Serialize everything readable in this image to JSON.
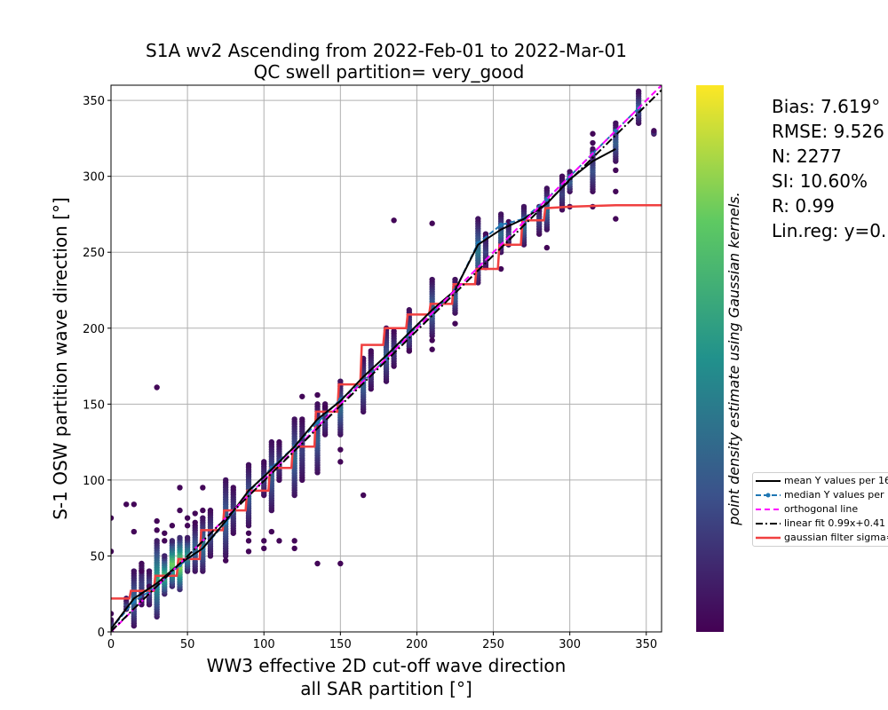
{
  "chart_data": {
    "type": "scatter",
    "title": [
      "S1A wv2 Ascending from 2022-Feb-01 to 2022-Mar-01",
      "QC swell partition= very_good"
    ],
    "xlabel": [
      "WW3 effective 2D cut-off wave direction",
      "all SAR partition [°]"
    ],
    "ylabel": "S-1 OSW partition wave direction [°]",
    "xlim": [
      0,
      360
    ],
    "ylim": [
      0,
      360
    ],
    "x_ticks": [
      0,
      50,
      100,
      150,
      200,
      250,
      300,
      350
    ],
    "y_ticks": [
      0,
      50,
      100,
      150,
      200,
      250,
      300,
      350
    ],
    "grid": true,
    "colorbar": {
      "label": "point density estimate using Gaussian kernels.",
      "colormap": "viridis",
      "colors": [
        "#440154",
        "#3b528b",
        "#21918c",
        "#5ec962",
        "#fde725"
      ]
    },
    "stats": [
      {
        "name": "Bias",
        "value": "7.619°"
      },
      {
        "name": "RMSE",
        "value": "9.526"
      },
      {
        "name": "N",
        "value": "2277"
      },
      {
        "name": "SI",
        "value": "10.60%"
      },
      {
        "name": "R",
        "value": "0.99"
      },
      {
        "name": "Lin.reg",
        "value": "y=0."
      }
    ],
    "stats_text": [
      "Bias: 7.619°",
      "RMSE: 9.526",
      "N: 2277",
      "SI: 10.60%",
      "R: 0.99",
      "Lin.reg: y=0."
    ],
    "legend": {
      "placement": "right",
      "entries": [
        {
          "label": "mean Y values per 16",
          "color": "#000000",
          "style": "solid"
        },
        {
          "label": "median Y values per",
          "color": "#1f77b4",
          "style": "dashed-dot-marker"
        },
        {
          "label": "orthogonal line",
          "color": "#ff00ff",
          "style": "dashed"
        },
        {
          "label": "linear fit 0.99x+0.41",
          "color": "#000000",
          "style": "dashdot"
        },
        {
          "label": "gaussian filter sigma=",
          "color": "#f04040",
          "style": "solid"
        }
      ]
    },
    "scatter_columns": [
      {
        "x": 0,
        "y_min": 0,
        "y_max": 8,
        "density": 0.3,
        "outliers": [
          12,
          53,
          75
        ]
      },
      {
        "x": 10,
        "y_min": 15,
        "y_max": 22,
        "density": 0.2,
        "outliers": [
          84
        ]
      },
      {
        "x": 15,
        "y_min": 4,
        "y_max": 40,
        "density": 0.35,
        "outliers": [
          66,
          84
        ]
      },
      {
        "x": 20,
        "y_min": 18,
        "y_max": 45,
        "density": 0.2,
        "outliers": [
          40
        ]
      },
      {
        "x": 25,
        "y_min": 18,
        "y_max": 40,
        "density": 0.3,
        "outliers": [
          30
        ]
      },
      {
        "x": 30,
        "y_min": 10,
        "y_max": 60,
        "density": 0.6,
        "outliers": [
          67,
          73,
          161
        ]
      },
      {
        "x": 35,
        "y_min": 25,
        "y_max": 50,
        "density": 0.7,
        "outliers": [
          60,
          65
        ]
      },
      {
        "x": 40,
        "y_min": 30,
        "y_max": 60,
        "density": 0.8,
        "outliers": [
          70
        ]
      },
      {
        "x": 45,
        "y_min": 28,
        "y_max": 62,
        "density": 0.9,
        "outliers": [
          80,
          95
        ]
      },
      {
        "x": 50,
        "y_min": 40,
        "y_max": 62,
        "density": 0.55,
        "outliers": [
          70,
          75
        ]
      },
      {
        "x": 55,
        "y_min": 40,
        "y_max": 70,
        "density": 0.35,
        "outliers": [
          72,
          78
        ]
      },
      {
        "x": 60,
        "y_min": 40,
        "y_max": 75,
        "density": 0.4,
        "outliers": [
          80,
          95
        ]
      },
      {
        "x": 65,
        "y_min": 50,
        "y_max": 80,
        "density": 0.25,
        "outliers": []
      },
      {
        "x": 75,
        "y_min": 50,
        "y_max": 100,
        "density": 0.35,
        "outliers": [
          47
        ]
      },
      {
        "x": 80,
        "y_min": 65,
        "y_max": 95,
        "density": 0.2,
        "outliers": []
      },
      {
        "x": 90,
        "y_min": 70,
        "y_max": 110,
        "density": 0.3,
        "outliers": [
          60,
          65,
          53
        ]
      },
      {
        "x": 100,
        "y_min": 90,
        "y_max": 112,
        "density": 0.2,
        "outliers": [
          60,
          55
        ]
      },
      {
        "x": 105,
        "y_min": 80,
        "y_max": 125,
        "density": 0.3,
        "outliers": [
          66
        ]
      },
      {
        "x": 110,
        "y_min": 100,
        "y_max": 125,
        "density": 0.2,
        "outliers": [
          60
        ]
      },
      {
        "x": 120,
        "y_min": 90,
        "y_max": 140,
        "density": 0.35,
        "outliers": [
          60,
          55
        ]
      },
      {
        "x": 125,
        "y_min": 100,
        "y_max": 140,
        "density": 0.2,
        "outliers": [
          155
        ]
      },
      {
        "x": 135,
        "y_min": 105,
        "y_max": 150,
        "density": 0.3,
        "outliers": [
          45,
          156
        ]
      },
      {
        "x": 140,
        "y_min": 130,
        "y_max": 150,
        "density": 0.2,
        "outliers": [
          148
        ]
      },
      {
        "x": 150,
        "y_min": 130,
        "y_max": 165,
        "density": 0.35,
        "outliers": [
          45,
          120,
          112
        ]
      },
      {
        "x": 165,
        "y_min": 145,
        "y_max": 180,
        "density": 0.3,
        "outliers": [
          90
        ]
      },
      {
        "x": 170,
        "y_min": 160,
        "y_max": 185,
        "density": 0.2,
        "outliers": []
      },
      {
        "x": 180,
        "y_min": 165,
        "y_max": 200,
        "density": 0.3,
        "outliers": []
      },
      {
        "x": 185,
        "y_min": 175,
        "y_max": 198,
        "density": 0.2,
        "outliers": [
          271
        ]
      },
      {
        "x": 195,
        "y_min": 185,
        "y_max": 212,
        "density": 0.3,
        "outliers": [
          185
        ]
      },
      {
        "x": 210,
        "y_min": 195,
        "y_max": 232,
        "density": 0.35,
        "outliers": [
          269,
          186,
          192
        ]
      },
      {
        "x": 225,
        "y_min": 210,
        "y_max": 232,
        "density": 0.3,
        "outliers": [
          203
        ]
      },
      {
        "x": 240,
        "y_min": 230,
        "y_max": 272,
        "density": 0.4,
        "outliers": []
      },
      {
        "x": 245,
        "y_min": 240,
        "y_max": 262,
        "density": 0.2,
        "outliers": []
      },
      {
        "x": 255,
        "y_min": 250,
        "y_max": 275,
        "density": 0.35,
        "outliers": [
          239
        ]
      },
      {
        "x": 260,
        "y_min": 255,
        "y_max": 270,
        "density": 0.2,
        "outliers": []
      },
      {
        "x": 270,
        "y_min": 255,
        "y_max": 280,
        "density": 0.35,
        "outliers": []
      },
      {
        "x": 280,
        "y_min": 262,
        "y_max": 280,
        "density": 0.2,
        "outliers": []
      },
      {
        "x": 285,
        "y_min": 265,
        "y_max": 292,
        "density": 0.35,
        "outliers": [
          253
        ]
      },
      {
        "x": 295,
        "y_min": 278,
        "y_max": 300,
        "density": 0.2,
        "outliers": []
      },
      {
        "x": 300,
        "y_min": 290,
        "y_max": 303,
        "density": 0.3,
        "outliers": [
          280
        ]
      },
      {
        "x": 315,
        "y_min": 290,
        "y_max": 318,
        "density": 0.25,
        "outliers": [
          328,
          322,
          280
        ]
      },
      {
        "x": 330,
        "y_min": 310,
        "y_max": 335,
        "density": 0.3,
        "outliers": [
          290,
          272,
          304
        ]
      },
      {
        "x": 345,
        "y_min": 335,
        "y_max": 356,
        "density": 0.3,
        "outliers": []
      },
      {
        "x": 355,
        "y_min": 328,
        "y_max": 330,
        "density": 0.2,
        "outliers": []
      }
    ],
    "series": [
      {
        "label_ref": 0,
        "x": [
          0,
          15,
          30,
          45,
          60,
          75,
          90,
          105,
          120,
          135,
          150,
          165,
          180,
          195,
          210,
          225,
          240,
          255,
          270,
          285,
          300,
          315,
          330
        ],
        "y": [
          2,
          22,
          32,
          45,
          55,
          73,
          93,
          107,
          122,
          140,
          152,
          168,
          182,
          197,
          212,
          225,
          255,
          265,
          272,
          282,
          298,
          310,
          318
        ]
      },
      {
        "label_ref": 1,
        "x": [
          0,
          15,
          30,
          45,
          60,
          75,
          90,
          105,
          120,
          135,
          150,
          165,
          180,
          195,
          210,
          225,
          240,
          255,
          270,
          285,
          300,
          315,
          330,
          345
        ],
        "y": [
          2,
          20,
          30,
          44,
          55,
          72,
          92,
          108,
          122,
          138,
          153,
          165,
          180,
          196,
          210,
          225,
          256,
          268,
          272,
          285,
          300,
          315,
          330,
          345
        ]
      },
      {
        "label_ref": 2,
        "x": [
          0,
          360
        ],
        "y": [
          0,
          360
        ]
      },
      {
        "label_ref": 3,
        "x": [
          0,
          360
        ],
        "y": [
          0.41,
          356.8
        ]
      },
      {
        "label_ref": 4,
        "x": [
          0,
          12,
          13,
          28,
          29,
          43,
          44,
          58,
          59,
          73,
          74,
          88,
          89,
          103,
          104,
          118,
          119,
          133,
          134,
          148,
          149,
          163,
          164,
          178,
          179,
          193,
          194,
          208,
          209,
          223,
          224,
          238,
          239,
          253,
          254,
          268,
          269,
          283,
          284,
          300,
          330,
          360
        ],
        "y": [
          22,
          22,
          27,
          27,
          37,
          37,
          48,
          48,
          67,
          67,
          80,
          80,
          93,
          93,
          108,
          108,
          122,
          122,
          145,
          145,
          163,
          163,
          189,
          189,
          200,
          200,
          209,
          209,
          216,
          216,
          229,
          229,
          239,
          239,
          255,
          255,
          271,
          271,
          279,
          280,
          281,
          281
        ]
      }
    ]
  }
}
